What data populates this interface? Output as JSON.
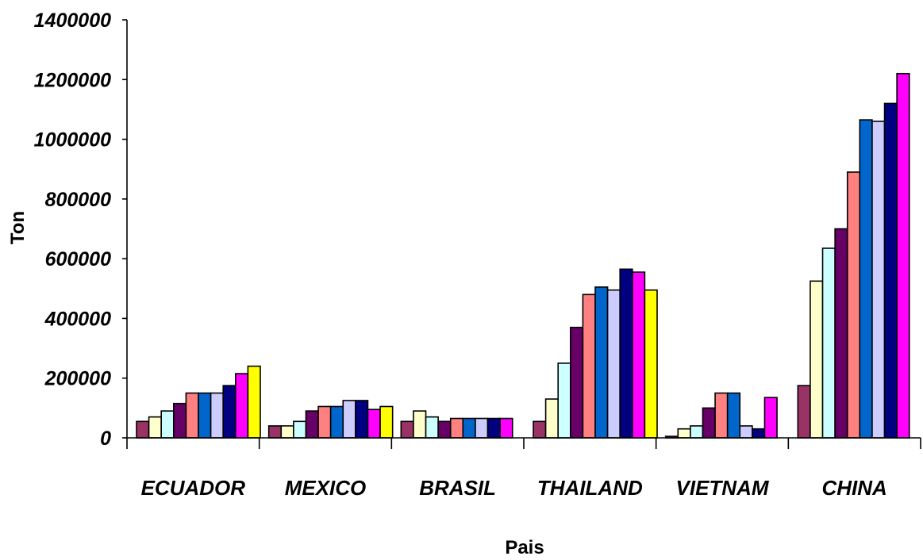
{
  "chart_data": {
    "type": "bar",
    "xlabel": "Pais",
    "ylabel": "Ton",
    "ylim": [
      0,
      1400000
    ],
    "yticks": [
      "0",
      "200000",
      "400000",
      "600000",
      "800000",
      "1000000",
      "1200000",
      "1400000"
    ],
    "grid": false,
    "legend": "none",
    "categories": [
      "ECUADOR",
      "MEXICO",
      "BRASIL",
      "THAILAND",
      "VIETNAM",
      "CHINA"
    ],
    "series": [
      {
        "color": "#993366",
        "values": [
          55000,
          40000,
          55000,
          55000,
          5000,
          175000
        ]
      },
      {
        "color": "#FFFFCC",
        "values": [
          70000,
          40000,
          90000,
          130000,
          30000,
          525000
        ]
      },
      {
        "color": "#CCFFFF",
        "values": [
          90000,
          55000,
          70000,
          250000,
          40000,
          635000
        ]
      },
      {
        "color": "#660066",
        "values": [
          115000,
          90000,
          55000,
          370000,
          100000,
          700000
        ]
      },
      {
        "color": "#FF8080",
        "values": [
          150000,
          105000,
          65000,
          480000,
          150000,
          890000
        ]
      },
      {
        "color": "#0066CC",
        "values": [
          150000,
          105000,
          65000,
          505000,
          150000,
          1065000
        ]
      },
      {
        "color": "#CCCCFF",
        "values": [
          150000,
          125000,
          65000,
          495000,
          40000,
          1060000
        ]
      },
      {
        "color": "#000080",
        "values": [
          175000,
          125000,
          65000,
          565000,
          30000,
          1120000
        ]
      },
      {
        "color": "#FF00FF",
        "values": [
          215000,
          95000,
          65000,
          555000,
          135000,
          1220000
        ]
      },
      {
        "color": "#FFFF00",
        "values": [
          240000,
          105000,
          null,
          495000,
          null,
          null
        ]
      }
    ]
  }
}
